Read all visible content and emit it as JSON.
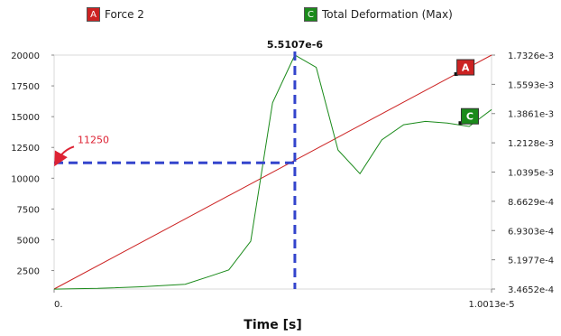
{
  "legend": [
    {
      "badge": "A",
      "label": "Force 2",
      "color": "#cc2222"
    },
    {
      "badge": "C",
      "label": "Total Deformation (Max)",
      "color": "#1a8a1a"
    }
  ],
  "chart_data": {
    "type": "line",
    "xlabel": "Time [s]",
    "x_tick_labels": [
      "0.",
      "1.0013e-5"
    ],
    "xlim": [
      0,
      1.0013e-05
    ],
    "left_axis": {
      "ticks": [
        2500,
        5000,
        7500,
        10000,
        12500,
        15000,
        17500,
        20000
      ],
      "range": [
        1000,
        20000
      ]
    },
    "right_axis": {
      "ticks": [
        "3.4652e-4",
        "5.1977e-4",
        "6.9303e-4",
        "8.6629e-4",
        "1.0395e-3",
        "1.2128e-3",
        "1.3861e-3",
        "1.5593e-3",
        "1.7326e-3"
      ],
      "range": [
        0.00034652,
        0.0017326
      ]
    },
    "series": [
      {
        "name": "Force 2",
        "badge": "A",
        "color": "#cc2222",
        "axis": "left",
        "x": [
          0,
          1.0013e-05
        ],
        "y": [
          1000,
          20000
        ]
      },
      {
        "name": "Total Deformation (Max)",
        "badge": "C",
        "color": "#1a8a1a",
        "axis": "right",
        "x": [
          0,
          4e-07,
          1e-06,
          2e-06,
          3e-06,
          3.6e-06,
          4e-06,
          4.5e-06,
          5e-06,
          5.5107e-06,
          6e-06,
          6.5e-06,
          7e-06,
          7.5e-06,
          8e-06,
          8.5e-06,
          9e-06,
          9.5e-06,
          1.0013e-05
        ],
        "y": [
          0.000346,
          0.000348,
          0.00035,
          0.00036,
          0.000375,
          0.000425,
          0.00046,
          0.00063,
          0.00145,
          0.0017326,
          0.00166,
          0.00117,
          0.00103,
          0.00123,
          0.00132,
          0.00134,
          0.00133,
          0.00131,
          0.00141
        ]
      }
    ],
    "cursor": {
      "x": 5.5107e-06,
      "label": "5.5107e-6"
    },
    "annotation": {
      "label": "11250",
      "y": 11250
    }
  }
}
